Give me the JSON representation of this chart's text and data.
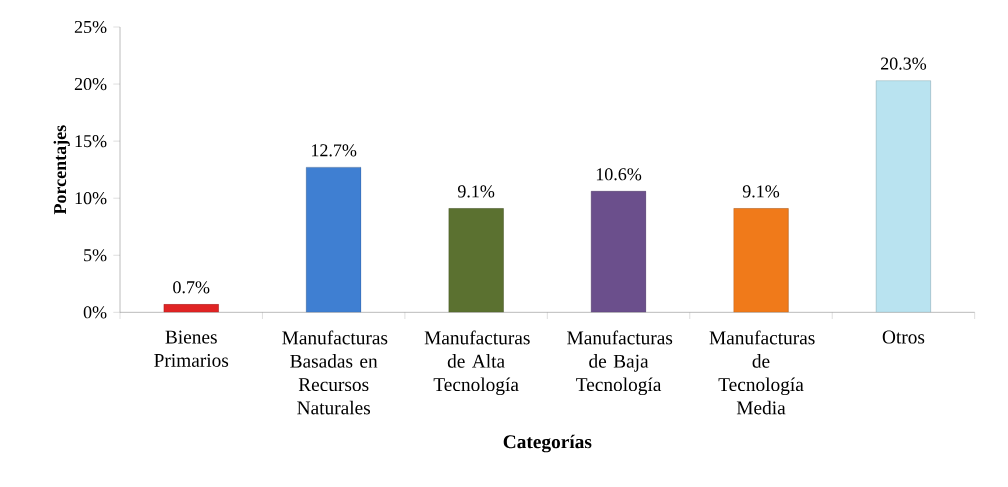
{
  "chart_data": {
    "type": "bar",
    "xlabel": "Categorías",
    "ylabel": "Porcentajes",
    "categories": [
      "Bienes Primarios",
      "Manufacturas Basadas en Recursos Naturales",
      "Manufacturas de Alta Tecnología",
      "Manufacturas de Baja Tecnología",
      "Manufacturas de Tecnología Media",
      "Otros"
    ],
    "values": [
      0.7,
      12.7,
      9.1,
      10.6,
      9.1,
      20.3
    ],
    "colors": [
      "#e02424",
      "#3f7fd2",
      "#5b7130",
      "#6b4f8c",
      "#f07a1a",
      "#b9e3f0"
    ],
    "value_labels": [
      "0.7%",
      "12.7%",
      "9.1%",
      "10.6%",
      "9.1%",
      "20.3%"
    ],
    "ylim": [
      0,
      25
    ],
    "yticks": [
      {
        "value": 0,
        "label": "0%"
      },
      {
        "value": 5,
        "label": "5%"
      },
      {
        "value": 10,
        "label": "10%"
      },
      {
        "value": 15,
        "label": "15%"
      },
      {
        "value": 20,
        "label": "20%"
      },
      {
        "value": 25,
        "label": "25%"
      }
    ],
    "grid": false
  }
}
